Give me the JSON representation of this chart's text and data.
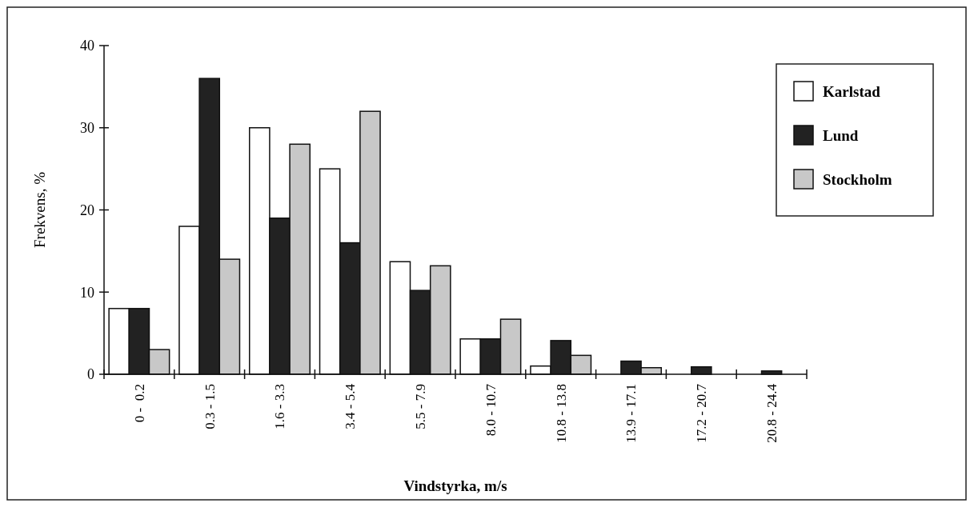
{
  "chart_data": {
    "type": "bar",
    "xlabel": "Vindstyrka, m/s",
    "ylabel": "Frekvens, %",
    "categories": [
      "0 -  0.2",
      "0.3 - 1.5",
      "1.6 - 3.3",
      "3.4 - 5.4",
      "5.5 - 7.9",
      "8.0 - 10.7",
      "10.8 - 13.8",
      "13.9 - 17.1",
      "17.2 - 20.7",
      "20.8 - 24.4"
    ],
    "series": [
      {
        "name": "Karlstad",
        "color": "#ffffff",
        "values": [
          8,
          18,
          30,
          25,
          13.7,
          4.3,
          1.0,
          0,
          0,
          0
        ]
      },
      {
        "name": "Lund",
        "color": "#222222",
        "values": [
          8,
          36,
          19,
          16,
          10.2,
          4.3,
          4.1,
          1.6,
          0.9,
          0.4
        ]
      },
      {
        "name": "Stockholm",
        "color": "#c8c8c8",
        "values": [
          3,
          14,
          28,
          32,
          13.2,
          6.7,
          2.3,
          0.8,
          0,
          0
        ]
      }
    ],
    "ylim": [
      0,
      40
    ],
    "yticks": [
      0,
      10,
      20,
      30,
      40
    ],
    "grid": false,
    "legend": "top right"
  }
}
